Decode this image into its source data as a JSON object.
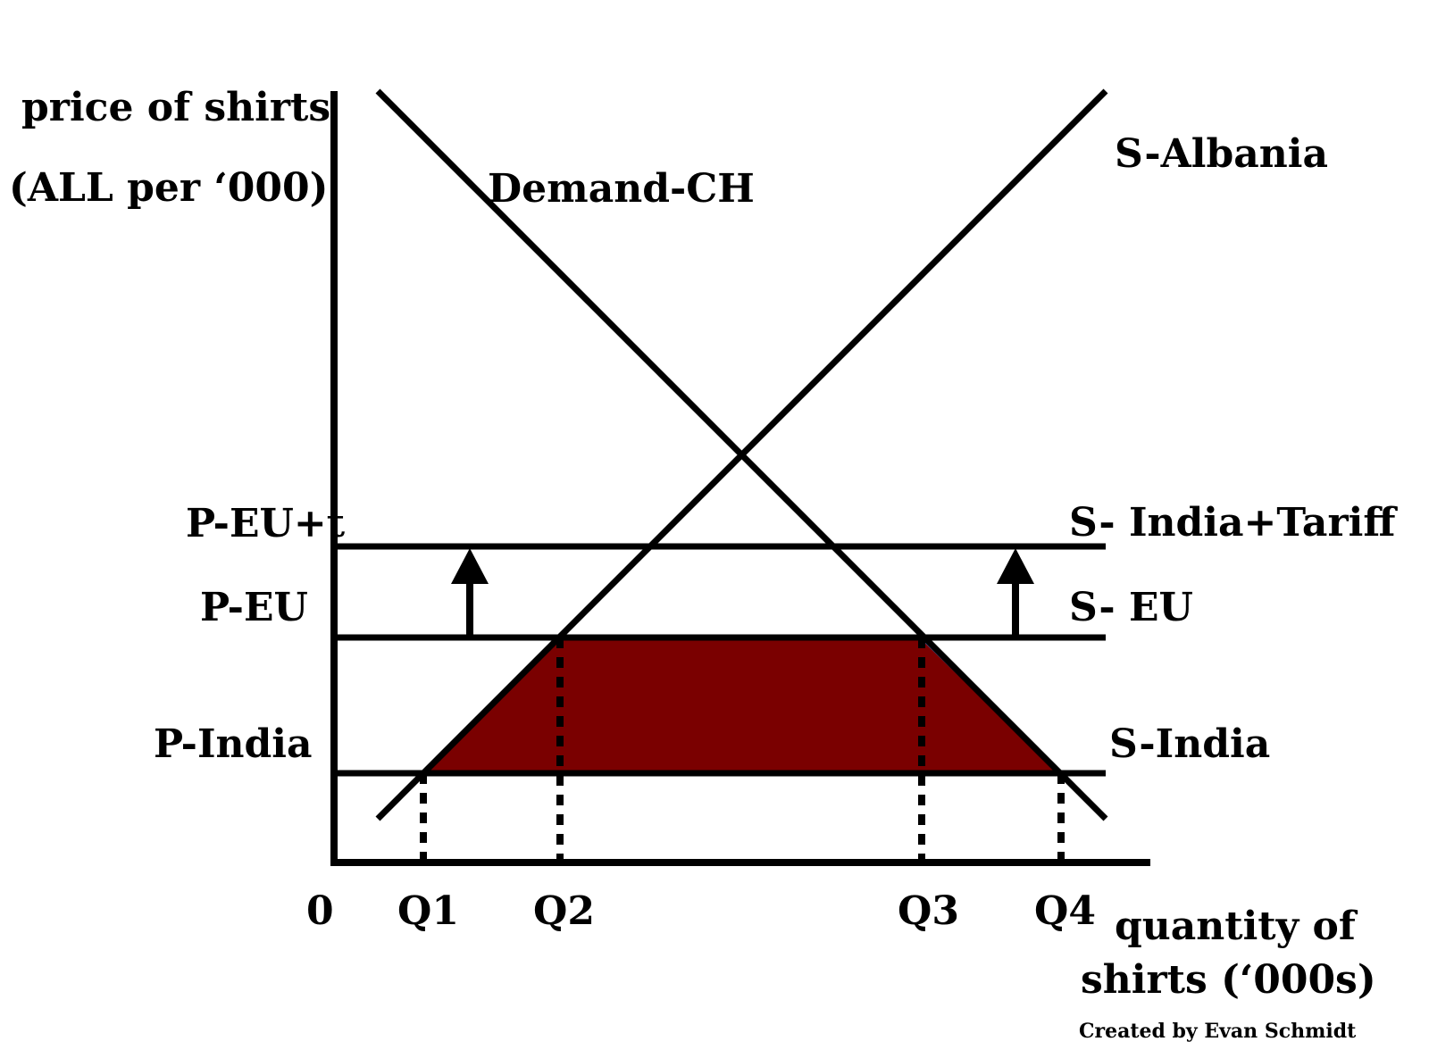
{
  "axes": {
    "y_label_line1": "price of shirts",
    "y_label_line2": "(ALL per ‘000)",
    "x_label_line1": "quantity of",
    "x_label_line2": "shirts (‘000s)",
    "origin": "0"
  },
  "price_labels": {
    "p_eu_t": "P-EU+t",
    "p_eu": "P-EU",
    "p_india": "P-India"
  },
  "quantity_labels": {
    "q1": "Q1",
    "q2": "Q2",
    "q3": "Q3",
    "q4": "Q4"
  },
  "curve_labels": {
    "demand": "Demand-CH",
    "s_albania": "S-Albania",
    "s_india_tariff": "S- India+Tariff",
    "s_eu": "S- EU",
    "s_india": "S-India"
  },
  "credit": "Created by Evan Schmidt",
  "colors": {
    "line": "#000000",
    "shaded_area": "#7a0000",
    "shaded_outline": "#4f7fd0",
    "background": "#ffffff"
  }
}
